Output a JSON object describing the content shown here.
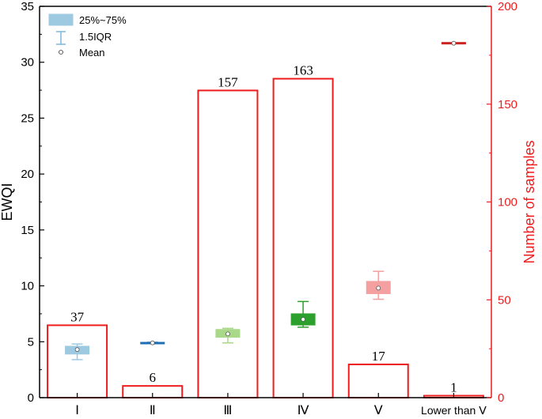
{
  "chart_data": {
    "type": "box-bar",
    "categories": [
      "Ⅰ",
      "Ⅱ",
      "Ⅲ",
      "Ⅳ",
      "Ⅴ",
      "Lower than Ⅴ"
    ],
    "left_axis": {
      "label": "EWQI",
      "ylim": [
        0,
        35
      ],
      "ticks": [
        0,
        5,
        10,
        15,
        20,
        25,
        30,
        35
      ]
    },
    "right_axis": {
      "label": "Number of samples",
      "ylim": [
        0,
        200
      ],
      "ticks": [
        0,
        50,
        100,
        150,
        200
      ],
      "color": "#ee1c1c"
    },
    "bars": {
      "values": [
        37,
        6,
        157,
        163,
        17,
        1
      ],
      "labels": [
        "37",
        "6",
        "157",
        "163",
        "17",
        "1"
      ],
      "edge_color": "#ee1c1c"
    },
    "boxes": [
      {
        "category": "Ⅰ",
        "whisker_low": 3.4,
        "q1": 3.9,
        "q3": 4.6,
        "whisker_high": 4.8,
        "mean": 4.3,
        "color": "#9ecae1"
      },
      {
        "category": "Ⅱ",
        "whisker_low": 4.85,
        "q1": 4.85,
        "q3": 4.95,
        "whisker_high": 4.95,
        "mean": 4.9,
        "color": "#1f6fb4"
      },
      {
        "category": "Ⅲ",
        "whisker_low": 4.9,
        "q1": 5.4,
        "q3": 6.1,
        "whisker_high": 6.2,
        "mean": 5.7,
        "color": "#a8d888"
      },
      {
        "category": "Ⅳ",
        "whisker_low": 6.3,
        "q1": 6.5,
        "q3": 7.5,
        "whisker_high": 8.6,
        "mean": 7.0,
        "color": "#2ca02c"
      },
      {
        "category": "Ⅴ",
        "whisker_low": 8.8,
        "q1": 9.3,
        "q3": 10.4,
        "whisker_high": 11.3,
        "mean": 9.8,
        "color": "#f4a0a0"
      },
      {
        "category": "Lower than Ⅴ",
        "whisker_low": 31.7,
        "q1": 31.7,
        "q3": 31.7,
        "whisker_high": 31.7,
        "mean": 31.7,
        "color": "#cc2222"
      }
    ],
    "legend": {
      "position": "top-left",
      "items": [
        {
          "label": "25%~75%",
          "kind": "box"
        },
        {
          "label": "1.5IQR",
          "kind": "whisker"
        },
        {
          "label": "Mean",
          "kind": "mean"
        }
      ]
    },
    "grid": false
  }
}
